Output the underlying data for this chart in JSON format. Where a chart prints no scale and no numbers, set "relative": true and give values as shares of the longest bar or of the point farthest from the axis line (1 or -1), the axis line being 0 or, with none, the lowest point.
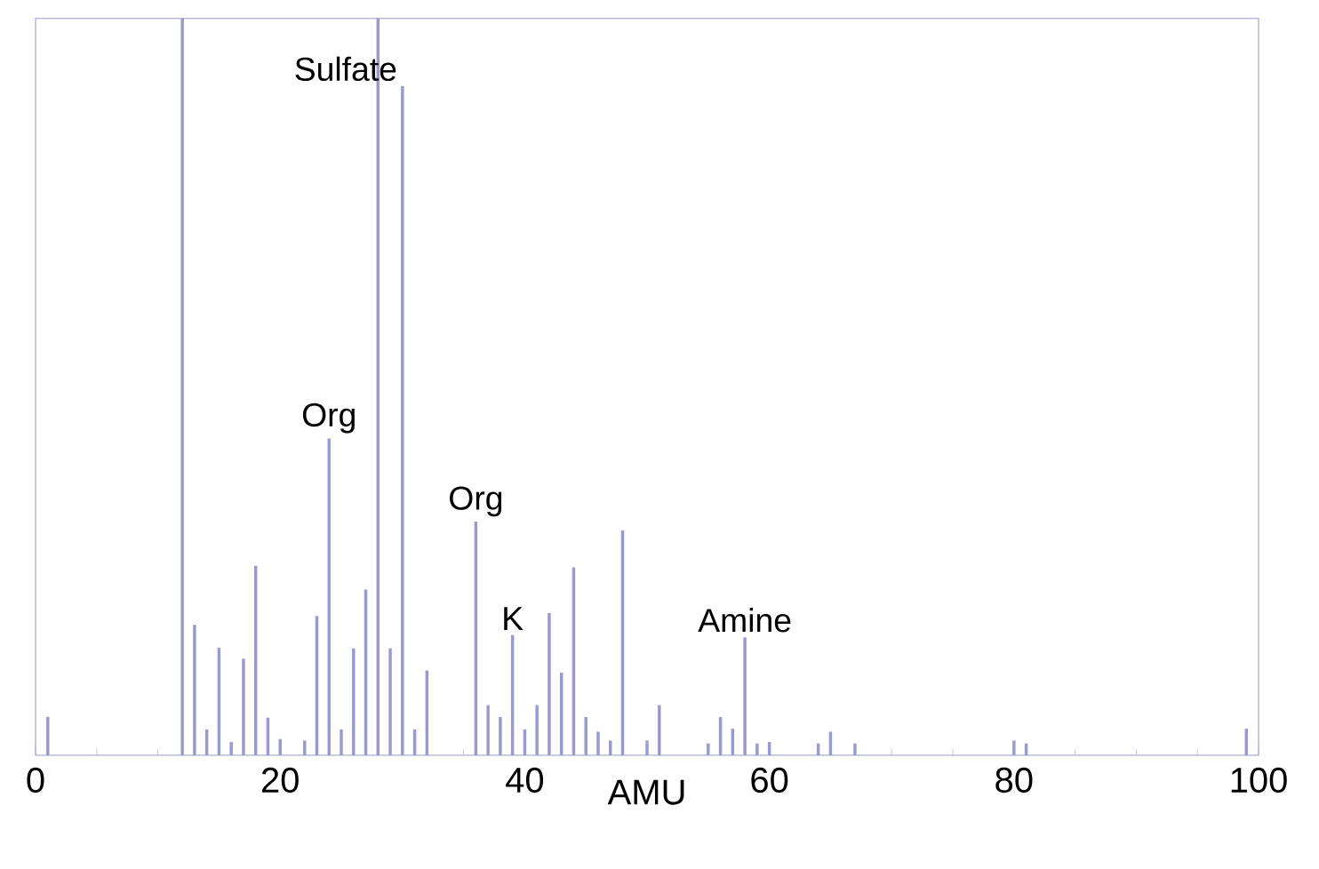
{
  "chart_data": {
    "type": "bar",
    "xlabel": "AMU",
    "relative": true,
    "color": "#9a9ad0",
    "x": [
      1,
      12,
      13,
      14,
      15,
      16,
      17,
      18,
      19,
      20,
      22,
      23,
      24,
      25,
      26,
      27,
      28,
      29,
      30,
      31,
      32,
      36,
      37,
      38,
      39,
      40,
      41,
      42,
      43,
      44,
      45,
      46,
      47,
      48,
      50,
      51,
      55,
      56,
      57,
      58,
      59,
      60,
      64,
      65,
      67,
      80,
      81,
      99
    ],
    "values": [
      0.052,
      1,
      0.177,
      0.035,
      0.146,
      0.018,
      0.131,
      0.257,
      0.051,
      0.022,
      0.02,
      0.189,
      0.43,
      0.035,
      0.145,
      0.225,
      1,
      0.145,
      0.908,
      0.035,
      0.115,
      0.317,
      0.068,
      0.052,
      0.163,
      0.035,
      0.068,
      0.193,
      0.112,
      0.255,
      0.052,
      0.032,
      0.02,
      0.305,
      0.02,
      0.068,
      0.016,
      0.052,
      0.036,
      0.16,
      0.016,
      0.018,
      0.016,
      0.032,
      0.016,
      0.02,
      0.016,
      0.036
    ],
    "xlim": [
      0,
      100
    ],
    "xticks": [
      {
        "value": 0,
        "label": "0"
      },
      {
        "value": 20,
        "label": "20"
      },
      {
        "value": 40,
        "label": "40"
      },
      {
        "value": 60,
        "label": "60"
      },
      {
        "value": 80,
        "label": "80"
      },
      {
        "value": 100,
        "label": "100"
      }
    ],
    "annotations": [
      {
        "text": "Sulfate",
        "x": 30,
        "y": 0.908
      },
      {
        "text": "Org",
        "x": 24,
        "y": 0.43
      },
      {
        "text": "Org",
        "x": 36,
        "y": 0.317
      },
      {
        "text": "K",
        "x": 39,
        "y": 0.163
      },
      {
        "text": "Amine",
        "x": 58,
        "y": 0.16
      }
    ]
  }
}
